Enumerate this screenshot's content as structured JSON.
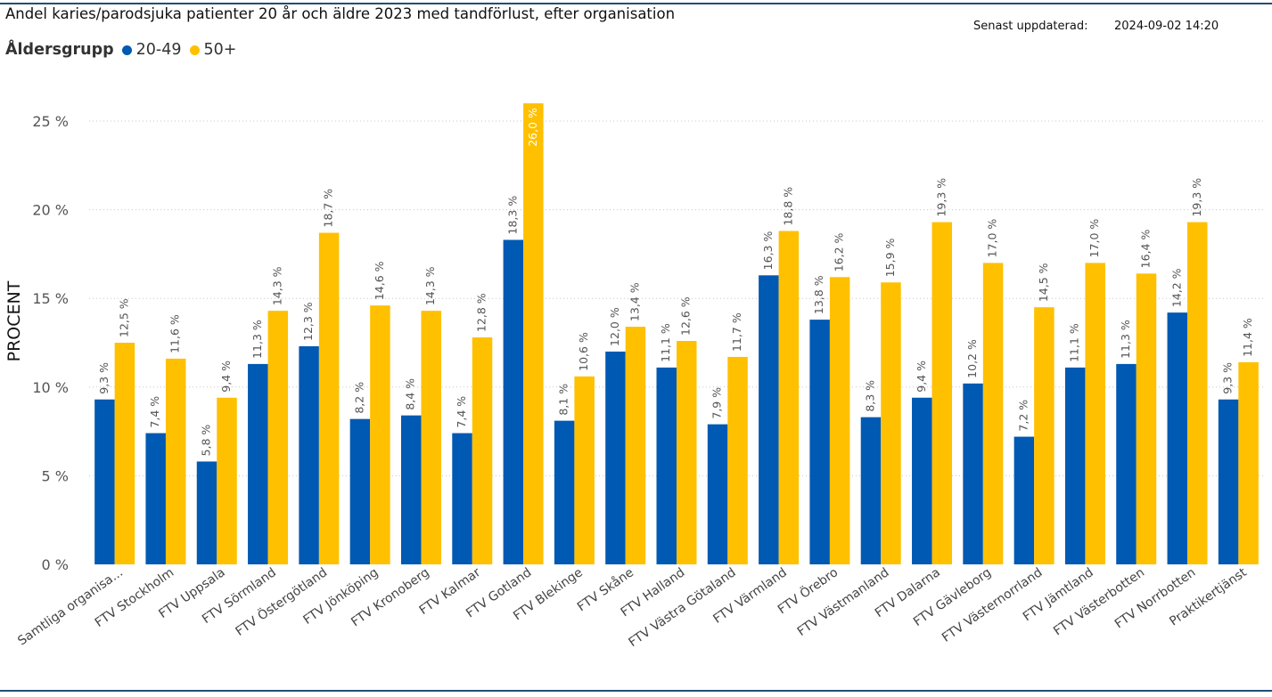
{
  "header": {
    "title": "Andel karies/parodsjuka patienter 20 år och äldre 2023 med tandförlust, efter organisation",
    "updated_label": "Senast uppdaterad:",
    "updated_value": "2024-09-02 14:20"
  },
  "legend": {
    "title": "Åldersgrupp",
    "items": [
      {
        "label": "20-49",
        "color": "#0059b3"
      },
      {
        "label": "50+",
        "color": "#ffc000"
      }
    ]
  },
  "chart_data": {
    "type": "bar",
    "title": "Andel karies/parodsjuka patienter 20 år och äldre 2023 med tandförlust, efter organisation",
    "xlabel": "",
    "ylabel": "PROCENT",
    "ylim": [
      0,
      25
    ],
    "yticks": [
      0,
      5,
      10,
      15,
      20,
      25
    ],
    "ytick_labels": [
      "0 %",
      "5 %",
      "10 %",
      "15 %",
      "20 %",
      "25 %"
    ],
    "grid": true,
    "legend_position": "top-left",
    "categories": [
      "Samtliga organisa...",
      "FTV Stockholm",
      "FTV Uppsala",
      "FTV Sörmland",
      "FTV Östergötland",
      "FTV Jönköping",
      "FTV Kronoberg",
      "FTV Kalmar",
      "FTV Gotland",
      "FTV Blekinge",
      "FTV Skåne",
      "FTV Halland",
      "FTV Västra Götaland",
      "FTV Värmland",
      "FTV Örebro",
      "FTV Västmanland",
      "FTV Dalarna",
      "FTV Gävleborg",
      "FTV Västernorrland",
      "FTV Jämtland",
      "FTV Västerbotten",
      "FTV Norrbotten",
      "Praktikertjänst"
    ],
    "series": [
      {
        "name": "20-49",
        "color": "#0059b3",
        "values": [
          9.3,
          7.4,
          5.8,
          11.3,
          12.3,
          8.2,
          8.4,
          7.4,
          18.3,
          8.1,
          12.0,
          11.1,
          7.9,
          16.3,
          13.8,
          8.3,
          9.4,
          10.2,
          7.2,
          11.1,
          11.3,
          14.2,
          9.3
        ],
        "labels": [
          "9,3 %",
          "7,4 %",
          "5,8 %",
          "11,3 %",
          "12,3 %",
          "8,2 %",
          "8,4 %",
          "7,4 %",
          "18,3 %",
          "8,1 %",
          "12,0 %",
          "11,1 %",
          "7,9 %",
          "16,3 %",
          "13,8 %",
          "8,3 %",
          "9,4 %",
          "10,2 %",
          "7,2 %",
          "11,1 %",
          "11,3 %",
          "14,2 %",
          "9,3 %"
        ]
      },
      {
        "name": "50+",
        "color": "#ffc000",
        "values": [
          12.5,
          11.6,
          9.4,
          14.3,
          18.7,
          14.6,
          14.3,
          12.8,
          26.0,
          10.6,
          13.4,
          12.6,
          11.7,
          18.8,
          16.2,
          15.9,
          19.3,
          17.0,
          14.5,
          17.0,
          16.4,
          19.3,
          11.4
        ],
        "labels": [
          "12,5 %",
          "11,6 %",
          "9,4 %",
          "14,3 %",
          "18,7 %",
          "14,6 %",
          "14,3 %",
          "12,8 %",
          "26,0 %",
          "10,6 %",
          "13,4 %",
          "12,6 %",
          "11,7 %",
          "18,8 %",
          "16,2 %",
          "15,9 %",
          "19,3 %",
          "17,0 %",
          "14,5 %",
          "17,0 %",
          "16,4 %",
          "19,3 %",
          "11,4 %"
        ]
      }
    ]
  }
}
